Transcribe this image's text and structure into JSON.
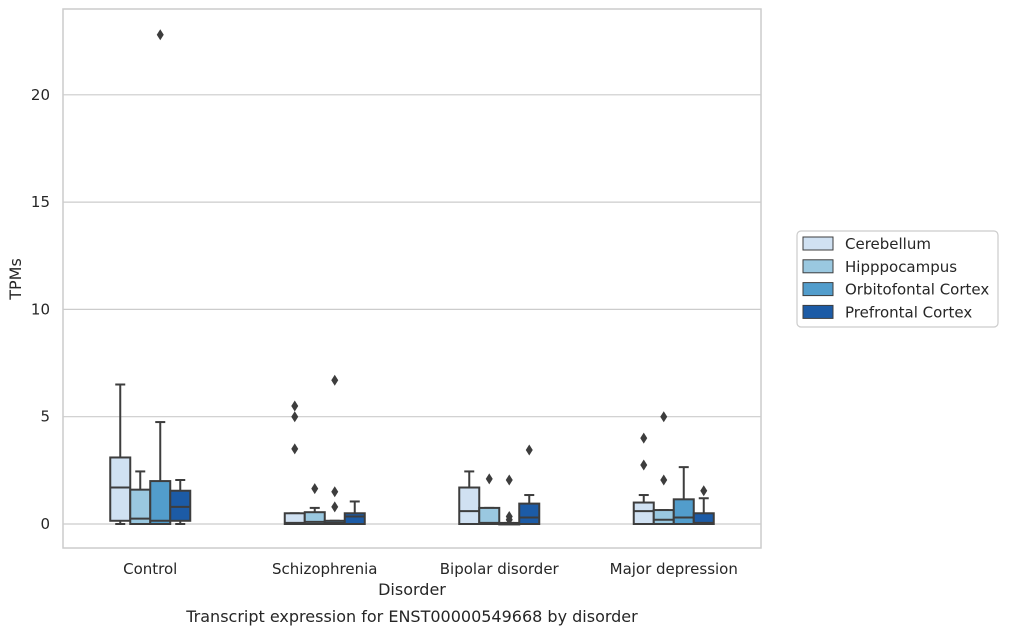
{
  "chart_data": {
    "type": "box",
    "xlabel": "Disorder",
    "ylabel": "TPMs",
    "caption": "Transcript expression for ENST00000549668 by disorder",
    "ylim": [
      -1.1,
      24.0
    ],
    "yticks": [
      0,
      5,
      10,
      15,
      20
    ],
    "ytick_labels": [
      "0",
      "5",
      "10",
      "15",
      "20"
    ],
    "grid": "horizontal",
    "legend_position": "right",
    "categories": [
      "Control",
      "Schizophrenia",
      "Bipolar disorder",
      "Major depression"
    ],
    "series": [
      {
        "name": "Cerebellum",
        "color": "#d0e1f2",
        "boxes": [
          {
            "min": 0.0,
            "q1": 0.15,
            "median": 1.7,
            "q3": 3.1,
            "max": 6.5,
            "outliers": []
          },
          {
            "min": 0.0,
            "q1": 0.0,
            "median": 0.05,
            "q3": 0.5,
            "max": 0.5,
            "outliers": [
              3.5,
              5.0,
              5.5
            ]
          },
          {
            "min": 0.0,
            "q1": 0.0,
            "median": 0.6,
            "q3": 1.7,
            "max": 2.45,
            "outliers": []
          },
          {
            "min": 0.0,
            "q1": 0.0,
            "median": 0.6,
            "q3": 1.0,
            "max": 1.35,
            "outliers": [
              2.75,
              4.0
            ]
          }
        ]
      },
      {
        "name": "Hipppocampus",
        "color": "#9ac8e0",
        "boxes": [
          {
            "min": 0.0,
            "q1": 0.0,
            "median": 0.25,
            "q3": 1.6,
            "max": 2.45,
            "outliers": []
          },
          {
            "min": 0.0,
            "q1": 0.0,
            "median": 0.1,
            "q3": 0.55,
            "max": 0.75,
            "outliers": [
              1.65
            ]
          },
          {
            "min": 0.0,
            "q1": 0.0,
            "median": 0.05,
            "q3": 0.75,
            "max": 0.75,
            "outliers": [
              2.1
            ]
          },
          {
            "min": 0.0,
            "q1": 0.0,
            "median": 0.2,
            "q3": 0.65,
            "max": 0.65,
            "outliers": [
              2.05,
              5.0
            ]
          }
        ]
      },
      {
        "name": "Orbitofontal Cortex",
        "color": "#529dcc",
        "boxes": [
          {
            "min": 0.0,
            "q1": 0.0,
            "median": 0.15,
            "q3": 2.0,
            "max": 4.75,
            "outliers": [
              22.8
            ]
          },
          {
            "min": 0.0,
            "q1": 0.0,
            "median": 0.05,
            "q3": 0.15,
            "max": 0.15,
            "outliers": [
              0.8,
              1.5,
              6.7
            ]
          },
          {
            "min": 0.0,
            "q1": 0.0,
            "median": 0.0,
            "q3": 0.05,
            "max": 0.05,
            "outliers": [
              0.2,
              0.35,
              2.05
            ]
          },
          {
            "min": 0.0,
            "q1": 0.0,
            "median": 0.3,
            "q3": 1.15,
            "max": 2.65,
            "outliers": []
          }
        ]
      },
      {
        "name": "Prefrontal Cortex",
        "color": "#1c5ba6",
        "boxes": [
          {
            "min": 0.0,
            "q1": 0.15,
            "median": 0.8,
            "q3": 1.55,
            "max": 2.05,
            "outliers": []
          },
          {
            "min": 0.0,
            "q1": 0.0,
            "median": 0.35,
            "q3": 0.5,
            "max": 1.05,
            "outliers": []
          },
          {
            "min": 0.0,
            "q1": 0.0,
            "median": 0.3,
            "q3": 0.95,
            "max": 1.35,
            "outliers": [
              3.45
            ]
          },
          {
            "min": 0.0,
            "q1": 0.0,
            "median": 0.05,
            "q3": 0.5,
            "max": 1.2,
            "outliers": [
              1.55
            ]
          }
        ]
      }
    ]
  }
}
